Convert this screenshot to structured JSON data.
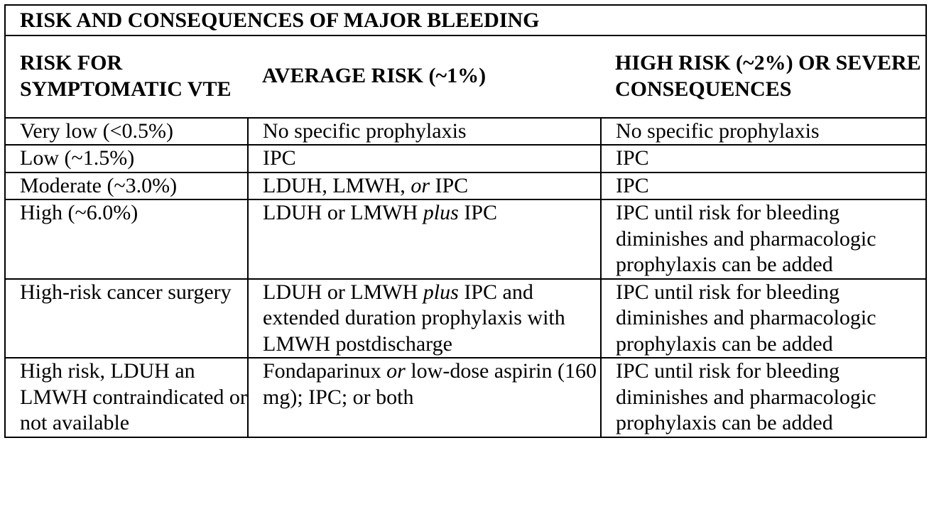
{
  "table": {
    "title": "RISK AND CONSEQUENCES OF MAJOR BLEEDING",
    "headers": [
      "RISK FOR SYMPTOMATIC VTE",
      "AVERAGE RISK (~1%)",
      "HIGH RISK (~2%) OR SEVERE CONSEQUENCES"
    ],
    "rows": [
      {
        "risk": "Very low (<0.5%)",
        "average": "No specific prophylaxis",
        "high": "No specific prophylaxis"
      },
      {
        "risk": "Low (~1.5%)",
        "average": "IPC",
        "high": "IPC"
      },
      {
        "risk": "Moderate (~3.0%)",
        "average_parts": [
          "LDUH, LMWH, ",
          "or",
          " IPC"
        ],
        "high": "IPC"
      },
      {
        "risk": "High (~6.0%)",
        "average_parts": [
          "LDUH or LMWH ",
          "plus",
          " IPC"
        ],
        "high": "IPC until risk for bleeding diminishes and pharmacologic prophylaxis can be added"
      },
      {
        "risk": "High-risk cancer surgery",
        "average_parts": [
          "LDUH or LMWH ",
          "plus",
          " IPC and extended duration prophylaxis with LMWH postdischarge"
        ],
        "high": "IPC until risk for bleeding diminishes and pharmacologic prophylaxis can be added"
      },
      {
        "risk": "High risk, LDUH an LMWH contraindicated or not available",
        "average_parts": [
          "Fondaparinux ",
          "or",
          " low-dose aspirin (160 mg); IPC; or both"
        ],
        "high": "IPC until risk for bleeding diminishes and pharmacologic prophylaxis can be added"
      }
    ]
  }
}
